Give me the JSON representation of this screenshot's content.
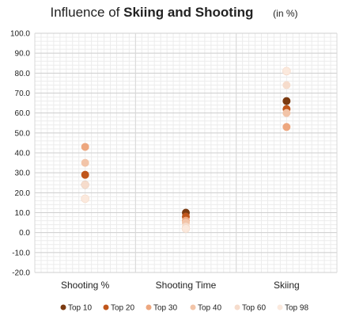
{
  "chart_data": {
    "type": "scatter",
    "title_prefix": "Influence of",
    "title_bold": "Skiing and Shooting",
    "title_unit": "(in %)",
    "categories": [
      "Shooting %",
      "Shooting Time",
      "Skiing"
    ],
    "ylim": [
      -20,
      100
    ],
    "yticks": [
      "100.0",
      "90.0",
      "80.0",
      "70.0",
      "60.0",
      "50.0",
      "40.0",
      "30.0",
      "20.0",
      "10.0",
      "0.0",
      "-10.0",
      "-20.0"
    ],
    "grid": true,
    "legend_position": "bottom",
    "series": [
      {
        "name": "Top 10",
        "color": "#7b3a10",
        "values": [
          24,
          10,
          66
        ]
      },
      {
        "name": "Top 20",
        "color": "#c0561b",
        "values": [
          29,
          8,
          62
        ]
      },
      {
        "name": "Top 30",
        "color": "#eda77f",
        "values": [
          43,
          6,
          53
        ]
      },
      {
        "name": "Top 40",
        "color": "#f2c4a8",
        "values": [
          35,
          5,
          60
        ]
      },
      {
        "name": "Top 60",
        "color": "#f6dccc",
        "values": [
          24,
          3,
          74
        ]
      },
      {
        "name": "Top 98",
        "color": "#fbe9dd",
        "values": [
          17,
          2,
          81
        ]
      }
    ]
  }
}
